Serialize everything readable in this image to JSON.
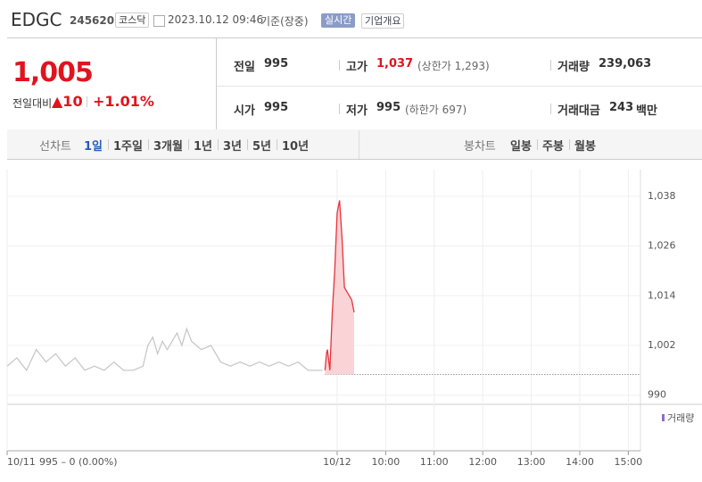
{
  "header": {
    "name": "EDGC",
    "code": "245620",
    "market": "코스닥",
    "datetime": "2023.10.12 09:46",
    "basis": "기준(장중)",
    "realtime_button": "실시간",
    "overview_button": "기업개요"
  },
  "quote": {
    "price": "1,005",
    "change_label": "전일대비",
    "change": "▲10",
    "change_pct": "+1.01%",
    "items": [
      {
        "label": "전일",
        "value": "995"
      },
      {
        "label": "고가",
        "value": "1,037",
        "note": "(상한가 1,293)"
      },
      {
        "label": "거래량",
        "value": "239,063"
      },
      {
        "label": "시가",
        "value": "995"
      },
      {
        "label": "저가",
        "value": "995",
        "note": "(하한가 697)"
      },
      {
        "label": "거래대금",
        "value": "243",
        "unit": "백만"
      }
    ]
  },
  "tabs": {
    "line_label": "선차트",
    "line_periods": [
      "1일",
      "1주일",
      "3개월",
      "1년",
      "3년",
      "5년",
      "10년"
    ],
    "candle_label": "봉차트",
    "candle_periods": [
      "일봉",
      "주봉",
      "월봉"
    ]
  },
  "chart_data": {
    "type": "line",
    "grid": true,
    "baseline": 995,
    "volume_label": "거래량",
    "prev_summary": "995 – 0 (0.00%)",
    "xlim": [
      2.2,
      15.25
    ],
    "xticks": [
      {
        "value": 2.2,
        "label": "10/11"
      },
      {
        "value": 9,
        "label": "10/12"
      },
      {
        "value": 10,
        "label": "10:00"
      },
      {
        "value": 11,
        "label": "11:00"
      },
      {
        "value": 12,
        "label": "12:00"
      },
      {
        "value": 13,
        "label": "13:00"
      },
      {
        "value": 14,
        "label": "14:00"
      },
      {
        "value": 15,
        "label": "15:00"
      }
    ],
    "ylim": [
      988,
      1044
    ],
    "yticks": [
      990,
      {
        "value": 1002,
        "label": "1,002"
      },
      {
        "value": 1014,
        "label": "1,014"
      },
      {
        "value": 1026,
        "label": "1,026"
      },
      {
        "value": 1038,
        "label": "1,038"
      }
    ],
    "series": [
      {
        "color": "#c8c8c8",
        "x": [
          2.2,
          2.4,
          2.6,
          2.8,
          3.0,
          3.2,
          3.4,
          3.6,
          3.8,
          4.0,
          4.2,
          4.4,
          4.6,
          4.8,
          5.0,
          5.1,
          5.2,
          5.3,
          5.4,
          5.5,
          5.6,
          5.7,
          5.8,
          5.9,
          6.0,
          6.2,
          6.4,
          6.6,
          6.8,
          7.0,
          7.2,
          7.4,
          7.6,
          7.8,
          8.0,
          8.2,
          8.4,
          8.6,
          8.7
        ],
        "values": [
          997,
          999,
          996,
          1001,
          998,
          1000,
          997,
          999,
          996,
          997,
          996,
          998,
          996,
          996,
          997,
          1002,
          1004,
          1000,
          1003,
          1001,
          1003,
          1005,
          1002,
          1006,
          1003,
          1001,
          1002,
          998,
          997,
          998,
          997,
          998,
          997,
          998,
          997,
          998,
          996,
          996,
          996
        ]
      },
      {
        "color": "#e8323c",
        "area_color": "#f9d3d5",
        "x": [
          8.75,
          8.78,
          8.8,
          8.85,
          8.9,
          8.95,
          9.0,
          9.05,
          9.1,
          9.15,
          9.2,
          9.25,
          9.3,
          9.35
        ],
        "values": [
          996,
          1000,
          1001,
          996,
          1010,
          1020,
          1034,
          1037,
          1028,
          1016,
          1015,
          1014,
          1013,
          1010
        ]
      }
    ]
  }
}
